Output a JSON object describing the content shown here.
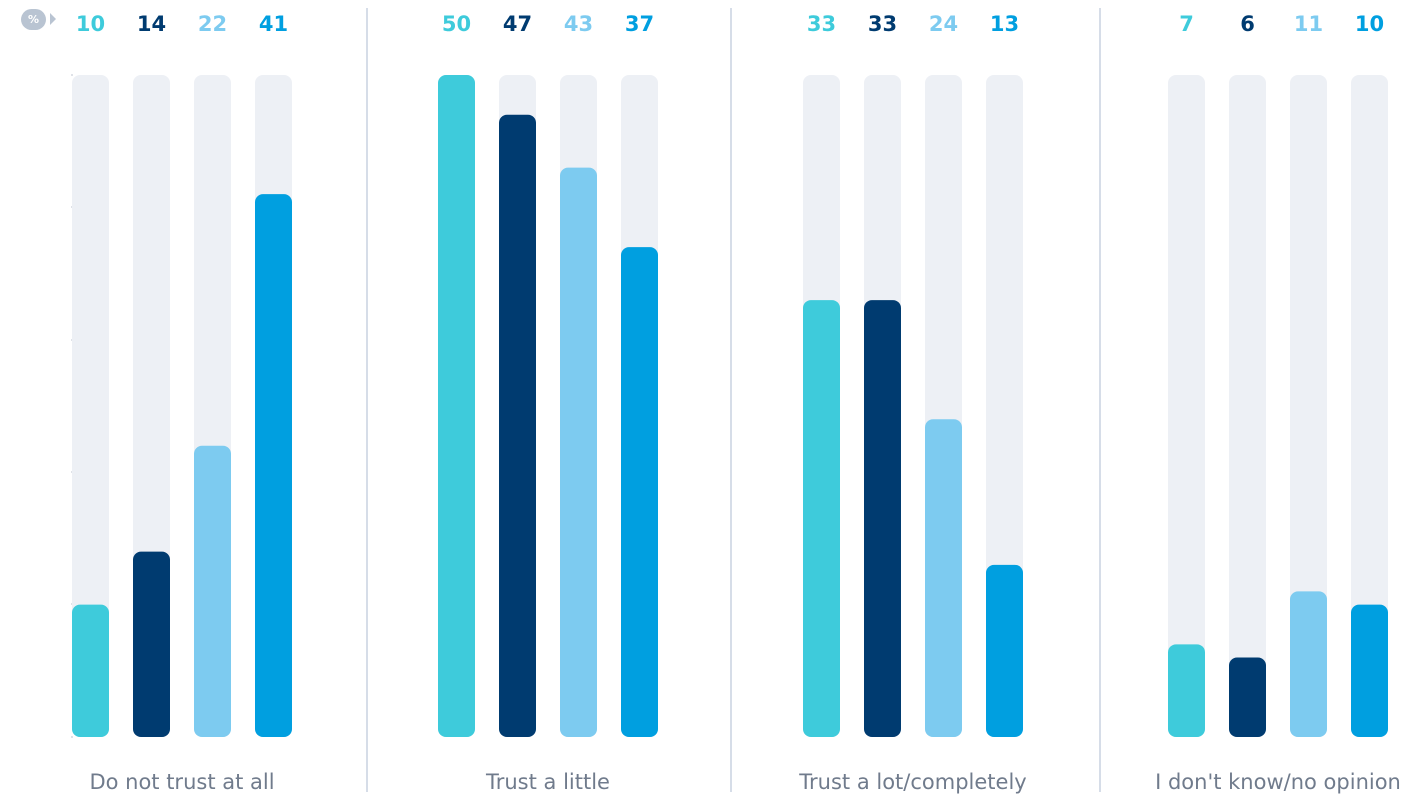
{
  "unit_badge": "%",
  "colors": {
    "series": [
      "#3ecbdb",
      "#003b70",
      "#7dcbf0",
      "#009fe0"
    ],
    "track": "#edf0f5",
    "divider": "#d6dde8",
    "label_text": "#707b8c"
  },
  "chart_data": {
    "type": "bar",
    "unit": "%",
    "ylim": [
      0,
      50
    ],
    "categories": [
      "Do not trust at all",
      "Trust a little",
      "Trust a lot/completely",
      "I don't know/no opinion"
    ],
    "series": [
      {
        "values": [
          10,
          50,
          33,
          7
        ]
      },
      {
        "values": [
          14,
          47,
          33,
          6
        ]
      },
      {
        "values": [
          22,
          43,
          24,
          11
        ]
      },
      {
        "values": [
          41,
          37,
          13,
          10
        ]
      }
    ]
  }
}
